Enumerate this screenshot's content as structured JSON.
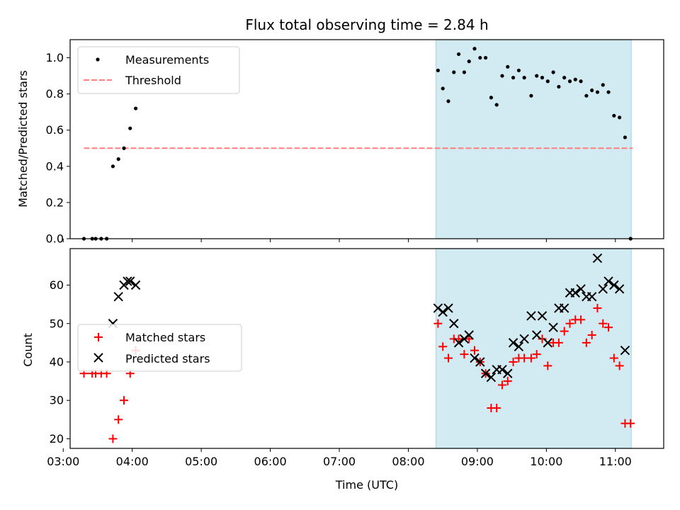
{
  "title": "Flux total observing time = 2.84 h",
  "colors": {
    "measurements": "#000000",
    "threshold": "#ff7f7f",
    "matched": "#ff0000",
    "predicted": "#000000",
    "span": "#add8e6"
  },
  "chart_data": [
    {
      "type": "scatter",
      "ylabel": "Matched/Predicted stars",
      "xlim": [
        3.1,
        11.7
      ],
      "ylim": [
        0,
        1.1
      ],
      "yticks": [
        0.0,
        0.2,
        0.4,
        0.6,
        0.8,
        1.0
      ],
      "ytick_labels": [
        "0.0",
        "0.2",
        "0.4",
        "0.6",
        "0.8",
        "1.0"
      ],
      "highlight_span": [
        8.4,
        11.23
      ],
      "threshold": {
        "value": 0.5,
        "x_range": [
          3.3,
          11.25
        ]
      },
      "legend": {
        "placement": "upper-left",
        "entries": [
          "Measurements",
          "Threshold"
        ]
      },
      "series": [
        {
          "name": "Measurements",
          "marker": "dot",
          "points": [
            [
              3.3,
              0
            ],
            [
              3.42,
              0
            ],
            [
              3.47,
              0
            ],
            [
              3.55,
              0
            ],
            [
              3.63,
              0
            ],
            [
              3.72,
              0.4
            ],
            [
              3.8,
              0.44
            ],
            [
              3.88,
              0.5
            ],
            [
              3.97,
              0.61
            ],
            [
              4.05,
              0.72
            ],
            [
              8.43,
              0.93
            ],
            [
              8.5,
              0.83
            ],
            [
              8.58,
              0.76
            ],
            [
              8.66,
              0.92
            ],
            [
              8.73,
              1.02
            ],
            [
              8.81,
              0.92
            ],
            [
              8.88,
              0.98
            ],
            [
              8.96,
              1.05
            ],
            [
              9.04,
              1.0
            ],
            [
              9.12,
              1.0
            ],
            [
              9.2,
              0.78
            ],
            [
              9.28,
              0.74
            ],
            [
              9.36,
              0.9
            ],
            [
              9.44,
              0.95
            ],
            [
              9.52,
              0.89
            ],
            [
              9.6,
              0.93
            ],
            [
              9.68,
              0.89
            ],
            [
              9.78,
              0.79
            ],
            [
              9.86,
              0.9
            ],
            [
              9.94,
              0.89
            ],
            [
              10.02,
              0.87
            ],
            [
              10.1,
              0.92
            ],
            [
              10.18,
              0.84
            ],
            [
              10.26,
              0.89
            ],
            [
              10.34,
              0.87
            ],
            [
              10.42,
              0.88
            ],
            [
              10.5,
              0.87
            ],
            [
              10.58,
              0.79
            ],
            [
              10.66,
              0.82
            ],
            [
              10.74,
              0.81
            ],
            [
              10.82,
              0.85
            ],
            [
              10.9,
              0.81
            ],
            [
              10.98,
              0.68
            ],
            [
              11.06,
              0.67
            ],
            [
              11.14,
              0.56
            ],
            [
              11.22,
              0
            ]
          ]
        }
      ]
    },
    {
      "type": "scatter",
      "xlabel": "Time (UTC)",
      "ylabel": "Count",
      "xlim": [
        3.1,
        11.7
      ],
      "ylim": [
        17.5,
        69.5
      ],
      "xticks": [
        3,
        4,
        5,
        6,
        7,
        8,
        9,
        10,
        11
      ],
      "xtick_labels": [
        "03:00",
        "04:00",
        "05:00",
        "06:00",
        "07:00",
        "08:00",
        "09:00",
        "10:00",
        "11:00"
      ],
      "yticks": [
        20,
        30,
        40,
        50,
        60
      ],
      "ytick_labels": [
        "20",
        "30",
        "40",
        "50",
        "60"
      ],
      "highlight_span": [
        8.4,
        11.23
      ],
      "legend": {
        "placement": "center-left",
        "entries": [
          "Matched stars",
          "Predicted stars"
        ]
      },
      "series": [
        {
          "name": "Matched stars",
          "marker": "plus",
          "points": [
            [
              3.3,
              37
            ],
            [
              3.42,
              37
            ],
            [
              3.47,
              37
            ],
            [
              3.55,
              37
            ],
            [
              3.63,
              37
            ],
            [
              3.72,
              20
            ],
            [
              3.8,
              25
            ],
            [
              3.88,
              30
            ],
            [
              3.97,
              37
            ],
            [
              4.05,
              43
            ],
            [
              8.43,
              50
            ],
            [
              8.5,
              44
            ],
            [
              8.58,
              41
            ],
            [
              8.66,
              46
            ],
            [
              8.73,
              46
            ],
            [
              8.81,
              42
            ],
            [
              8.88,
              46
            ],
            [
              8.96,
              43
            ],
            [
              9.04,
              40
            ],
            [
              9.12,
              37
            ],
            [
              9.2,
              28
            ],
            [
              9.28,
              28
            ],
            [
              9.36,
              34
            ],
            [
              9.44,
              35
            ],
            [
              9.52,
              40
            ],
            [
              9.6,
              41
            ],
            [
              9.68,
              41
            ],
            [
              9.78,
              41
            ],
            [
              9.86,
              42
            ],
            [
              9.94,
              46
            ],
            [
              10.02,
              39
            ],
            [
              10.1,
              45
            ],
            [
              10.18,
              45
            ],
            [
              10.26,
              48
            ],
            [
              10.34,
              50
            ],
            [
              10.42,
              51
            ],
            [
              10.5,
              51
            ],
            [
              10.58,
              45
            ],
            [
              10.66,
              47
            ],
            [
              10.74,
              54
            ],
            [
              10.82,
              50
            ],
            [
              10.9,
              49
            ],
            [
              10.98,
              41
            ],
            [
              11.06,
              39
            ],
            [
              11.14,
              24
            ],
            [
              11.22,
              24
            ]
          ]
        },
        {
          "name": "Predicted stars",
          "marker": "x",
          "points": [
            [
              3.72,
              50
            ],
            [
              3.8,
              57
            ],
            [
              3.88,
              60
            ],
            [
              3.93,
              61
            ],
            [
              3.97,
              61
            ],
            [
              4.05,
              60
            ],
            [
              8.43,
              54
            ],
            [
              8.5,
              53
            ],
            [
              8.58,
              54
            ],
            [
              8.66,
              50
            ],
            [
              8.73,
              45
            ],
            [
              8.81,
              46
            ],
            [
              8.88,
              47
            ],
            [
              8.96,
              41
            ],
            [
              9.04,
              40
            ],
            [
              9.12,
              37
            ],
            [
              9.2,
              36
            ],
            [
              9.28,
              38
            ],
            [
              9.36,
              38
            ],
            [
              9.44,
              37
            ],
            [
              9.52,
              45
            ],
            [
              9.6,
              44
            ],
            [
              9.68,
              46
            ],
            [
              9.78,
              52
            ],
            [
              9.86,
              47
            ],
            [
              9.94,
              52
            ],
            [
              10.02,
              45
            ],
            [
              10.1,
              49
            ],
            [
              10.18,
              54
            ],
            [
              10.26,
              54
            ],
            [
              10.34,
              58
            ],
            [
              10.42,
              58
            ],
            [
              10.5,
              59
            ],
            [
              10.58,
              57
            ],
            [
              10.66,
              57
            ],
            [
              10.74,
              67
            ],
            [
              10.82,
              59
            ],
            [
              10.9,
              61
            ],
            [
              10.98,
              60
            ],
            [
              11.06,
              59
            ],
            [
              11.14,
              43
            ]
          ]
        }
      ]
    }
  ]
}
